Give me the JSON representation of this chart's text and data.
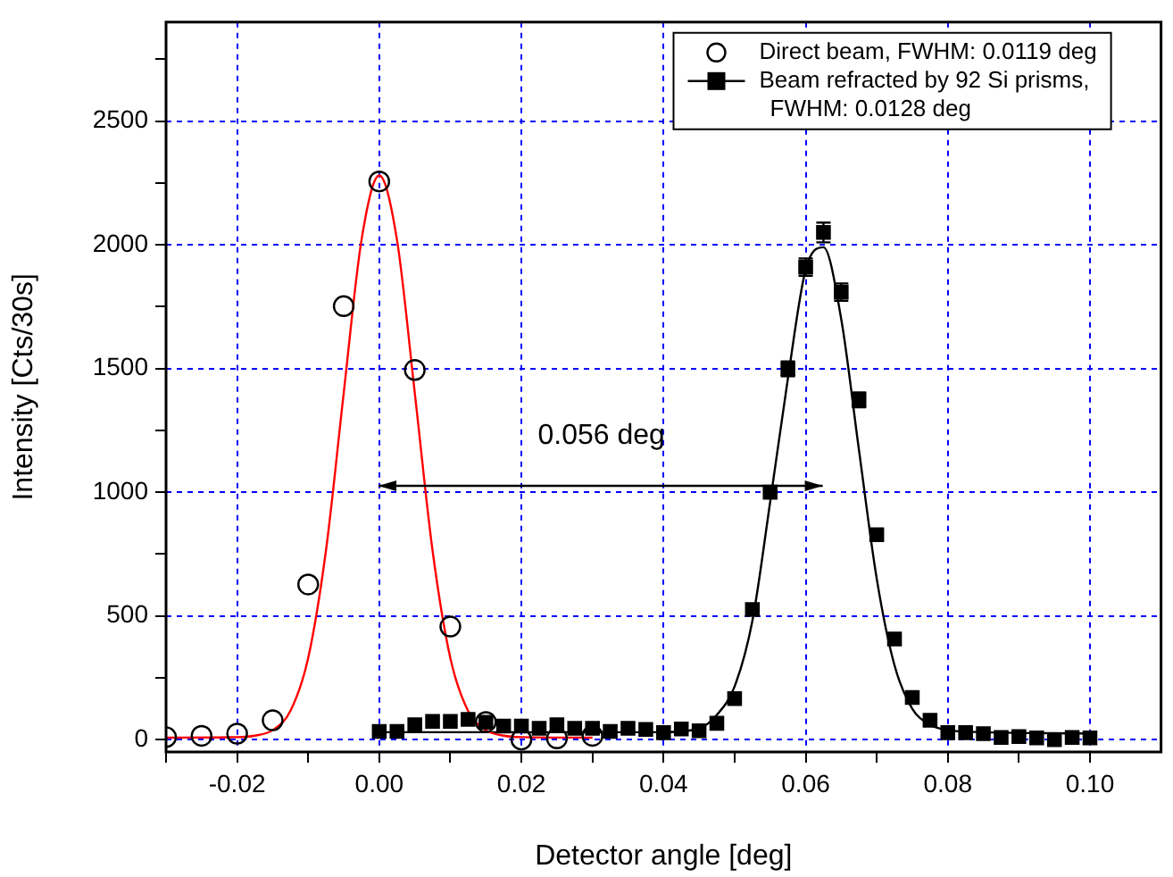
{
  "chart_data": {
    "type": "scatter",
    "xlabel": "Detector angle [deg]",
    "ylabel": "Intensity [Cts/30s]",
    "xlim": [
      -0.03,
      0.11
    ],
    "ylim": [
      -50,
      2900
    ],
    "xticks": [
      {
        "value": -0.03,
        "label": null
      },
      {
        "value": -0.02,
        "label": "-0.02"
      },
      {
        "value": -0.01,
        "label": null
      },
      {
        "value": 0,
        "label": "0.00"
      },
      {
        "value": 0.01,
        "label": null
      },
      {
        "value": 0.02,
        "label": "0.02"
      },
      {
        "value": 0.03,
        "label": null
      },
      {
        "value": 0.04,
        "label": "0.04"
      },
      {
        "value": 0.05,
        "label": null
      },
      {
        "value": 0.06,
        "label": "0.06"
      },
      {
        "value": 0.07,
        "label": null
      },
      {
        "value": 0.08,
        "label": "0.08"
      },
      {
        "value": 0.09,
        "label": null
      },
      {
        "value": 0.1,
        "label": "0.10"
      }
    ],
    "yticks": [
      0,
      {
        "value": 250,
        "label": null
      },
      500,
      {
        "value": 750,
        "label": null
      },
      1000,
      {
        "value": 1250,
        "label": null
      },
      1500,
      {
        "value": 1750,
        "label": null
      },
      2000,
      {
        "value": 2250,
        "label": null
      },
      2500,
      {
        "value": 2750,
        "label": null
      }
    ],
    "grid": true,
    "legend": "top right",
    "annotations": [
      "0.056 deg"
    ],
    "series": [
      {
        "name": "Direct beam, FWHM: 0.0119 deg",
        "marker": "circle",
        "color": "#000000",
        "x": [
          -0.03,
          -0.025,
          -0.02,
          -0.015,
          -0.01,
          -0.005,
          0,
          0.005,
          0.01,
          0.015,
          0.02,
          0.025,
          0.03
        ],
        "values": [
          10,
          15,
          24,
          78,
          627,
          1752,
          2256,
          1494,
          457,
          71,
          0,
          5,
          15
        ]
      },
      {
        "type": "line",
        "marker": "none",
        "color": "#ff0000",
        "x": [
          -0.03,
          -0.02,
          -0.0175,
          -0.015,
          -0.0125,
          -0.01,
          -0.0075,
          -0.005,
          -0.0025,
          0,
          0.0025,
          0.005,
          0.0075,
          0.01,
          0.0125,
          0.015,
          0.0175,
          0.02,
          0.03
        ],
        "values": [
          8,
          10,
          16,
          38,
          116,
          330,
          764,
          1401,
          2019,
          2280,
          2019,
          1401,
          764,
          330,
          116,
          38,
          16,
          10,
          8
        ]
      },
      {
        "name": "Beam refracted by 92 Si prisms, FWHM: 0.0128 deg",
        "marker": "square",
        "color": "#000000",
        "x": [
          0,
          0.0025,
          0.005,
          0.0075,
          0.01,
          0.0125,
          0.015,
          0.0175,
          0.02,
          0.0225,
          0.025,
          0.0275,
          0.03,
          0.0325,
          0.035,
          0.0375,
          0.04,
          0.0425,
          0.045,
          0.0475,
          0.05,
          0.0525,
          0.055,
          0.0575,
          0.06,
          0.0625,
          0.065,
          0.0675,
          0.07,
          0.0725,
          0.075,
          0.0775,
          0.08,
          0.0825,
          0.085,
          0.0875,
          0.09,
          0.0925,
          0.095,
          0.0975,
          0.1
        ],
        "values": [
          33,
          33,
          60,
          74,
          74,
          82,
          70,
          55,
          55,
          46,
          60,
          46,
          46,
          33,
          46,
          41,
          28,
          43,
          36,
          66,
          166,
          526,
          1000,
          1499,
          1910,
          2050,
          1809,
          1373,
          828,
          407,
          170,
          78,
          28,
          28,
          24,
          9,
          12,
          7,
          0,
          9,
          7
        ],
        "errors": [
          null,
          null,
          null,
          null,
          null,
          null,
          null,
          null,
          null,
          null,
          null,
          null,
          null,
          null,
          null,
          null,
          null,
          null,
          null,
          null,
          null,
          null,
          null,
          30,
          35,
          40,
          35,
          30,
          null,
          null,
          null,
          null,
          null,
          null,
          null,
          null,
          null,
          null,
          null,
          null,
          null
        ]
      },
      {
        "type": "line",
        "marker": "none",
        "color": "#000000",
        "x": [
          0,
          0.04,
          0.045,
          0.0475,
          0.05,
          0.0525,
          0.055,
          0.0575,
          0.06,
          0.0625,
          0.065,
          0.0675,
          0.07,
          0.0725,
          0.075,
          0.0775,
          0.08,
          0.085,
          0.1
        ],
        "values": [
          30,
          30,
          45,
          100,
          215,
          480,
          960,
          1460,
          1900,
          1990,
          1700,
          1170,
          650,
          300,
          125,
          60,
          38,
          30,
          25
        ]
      }
    ]
  }
}
